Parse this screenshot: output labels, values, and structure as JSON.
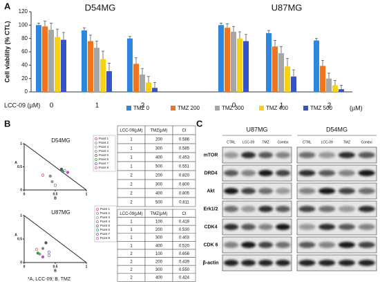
{
  "panel_labels": [
    "A",
    "B",
    "C"
  ],
  "chart_data": [
    {
      "type": "bar",
      "groups": [
        "D54MG",
        "U87MG"
      ],
      "categories": [
        "0",
        "1",
        "2",
        "0",
        "1",
        "2"
      ],
      "x_label": "LCC-09 (µM)",
      "y_label": "Cell viability (% CTL)",
      "legend_note": "(µM)",
      "ylim": [
        0,
        120
      ],
      "yticks": [
        0,
        20,
        40,
        60,
        80,
        100,
        120
      ],
      "series": [
        {
          "name": "TMZ 0",
          "color": "#2e86de",
          "values": [
            100,
            92,
            80,
            100,
            88,
            77
          ],
          "errors": [
            3,
            4,
            3,
            3,
            4,
            3
          ]
        },
        {
          "name": "TMZ 200",
          "color": "#f0731e",
          "values": [
            98,
            76,
            42,
            96,
            68,
            39
          ],
          "errors": [
            8,
            9,
            9,
            6,
            9,
            8
          ]
        },
        {
          "name": "TMZ 300",
          "color": "#a6a6a6",
          "values": [
            93,
            66,
            26,
            90,
            58,
            20
          ],
          "errors": [
            10,
            10,
            9,
            8,
            10,
            8
          ]
        },
        {
          "name": "TMZ 400",
          "color": "#f7d117",
          "values": [
            82,
            49,
            14,
            80,
            38,
            10
          ],
          "errors": [
            12,
            12,
            9,
            10,
            12,
            7
          ]
        },
        {
          "name": "TMZ 500",
          "color": "#3552c9",
          "values": [
            78,
            31,
            6,
            76,
            23,
            4
          ],
          "errors": [
            11,
            12,
            8,
            10,
            10,
            6
          ]
        }
      ]
    },
    {
      "type": "scatter",
      "title": "D54MG",
      "x_label": "B",
      "y_label": "A",
      "xlim": [
        0,
        1
      ],
      "ylim": [
        0,
        1
      ],
      "xticks": [
        0,
        0.5,
        1
      ],
      "yticks": [
        0,
        0.5,
        1
      ],
      "series": [
        {
          "name": "Point 1",
          "color": "#e04040",
          "x": [
            0.3
          ],
          "values": [
            0.32
          ]
        },
        {
          "name": "Point 2",
          "color": "#888888",
          "x": [
            0.42
          ],
          "values": [
            0.3
          ]
        },
        {
          "name": "Point 3",
          "color": "#999999",
          "x": [
            0.45
          ],
          "values": [
            0.18
          ]
        },
        {
          "name": "Point 4",
          "color": "#777777",
          "x": [
            0.5
          ],
          "values": [
            0.1
          ]
        },
        {
          "name": "Point 5",
          "color": "#555555",
          "x": [
            0.6
          ],
          "values": [
            0.45
          ]
        },
        {
          "name": "Point 6",
          "color": "#2a9d4a",
          "x": [
            0.62
          ],
          "values": [
            0.4
          ]
        },
        {
          "name": "Point 7",
          "color": "#7a4fb0",
          "x": [
            0.65
          ],
          "values": [
            0.42
          ]
        },
        {
          "name": "Point 8",
          "color": "#c050c0",
          "x": [
            0.7
          ],
          "values": [
            0.38
          ]
        }
      ]
    },
    {
      "type": "scatter",
      "title": "U87MG",
      "x_label": "B",
      "y_label": "A",
      "xlim": [
        0,
        1
      ],
      "ylim": [
        0,
        1
      ],
      "xticks": [
        0,
        0.5,
        1
      ],
      "yticks": [
        0,
        0.5,
        1
      ],
      "series": [
        {
          "name": "Point 1",
          "color": "#e04040",
          "x": [
            0.2
          ],
          "values": [
            0.28
          ]
        },
        {
          "name": "Point 2",
          "color": "#888888",
          "x": [
            0.3
          ],
          "values": [
            0.3
          ]
        },
        {
          "name": "Point 3",
          "color": "#999999",
          "x": [
            0.25
          ],
          "values": [
            0.18
          ]
        },
        {
          "name": "Point 4",
          "color": "#777777",
          "x": [
            0.4
          ],
          "values": [
            0.15
          ]
        },
        {
          "name": "Point 5",
          "color": "#555555",
          "x": [
            0.35
          ],
          "values": [
            0.42
          ]
        },
        {
          "name": "Point 6",
          "color": "#2a9d4a",
          "x": [
            0.22
          ],
          "values": [
            0.2
          ]
        },
        {
          "name": "Point 7",
          "color": "#7a4fb0",
          "x": [
            0.4
          ],
          "values": [
            0.22
          ]
        },
        {
          "name": "Point 8",
          "color": "#c050c0",
          "x": [
            0.3
          ],
          "values": [
            0.12
          ]
        }
      ]
    }
  ],
  "footnote": "*A, LCC-09; B, TMZ",
  "tables": [
    {
      "header": [
        "LCC-09(µM)",
        "TMZ(µM)",
        "CI"
      ],
      "rows": [
        [
          1,
          200,
          0.586
        ],
        [
          1,
          300,
          0.585
        ],
        [
          1,
          400,
          0.453
        ],
        [
          1,
          500,
          0.551
        ],
        [
          2,
          200,
          0.82
        ],
        [
          2,
          300,
          0.8
        ],
        [
          2,
          400,
          0.805
        ],
        [
          2,
          500,
          0.811
        ]
      ]
    },
    {
      "header": [
        "LCC-09(µM)",
        "TMZ(µM)",
        "CI"
      ],
      "rows": [
        [
          1,
          100,
          0.419
        ],
        [
          1,
          200,
          0.53
        ],
        [
          1,
          300,
          0.403
        ],
        [
          1,
          400,
          0.52
        ],
        [
          2,
          100,
          0.656
        ],
        [
          2,
          200,
          0.439
        ],
        [
          2,
          300,
          0.55
        ],
        [
          2,
          400,
          0.424
        ]
      ]
    }
  ],
  "blot": {
    "cell_lines": [
      "U87MG",
      "D54MG"
    ],
    "lanes": [
      "CTRL",
      "LCC-09",
      "TMZ",
      "Combo"
    ],
    "proteins": [
      "mTOR",
      "DRD4",
      "Akt",
      "Erk1/2",
      "CDK4",
      "CDK 6",
      "β-actin"
    ]
  }
}
